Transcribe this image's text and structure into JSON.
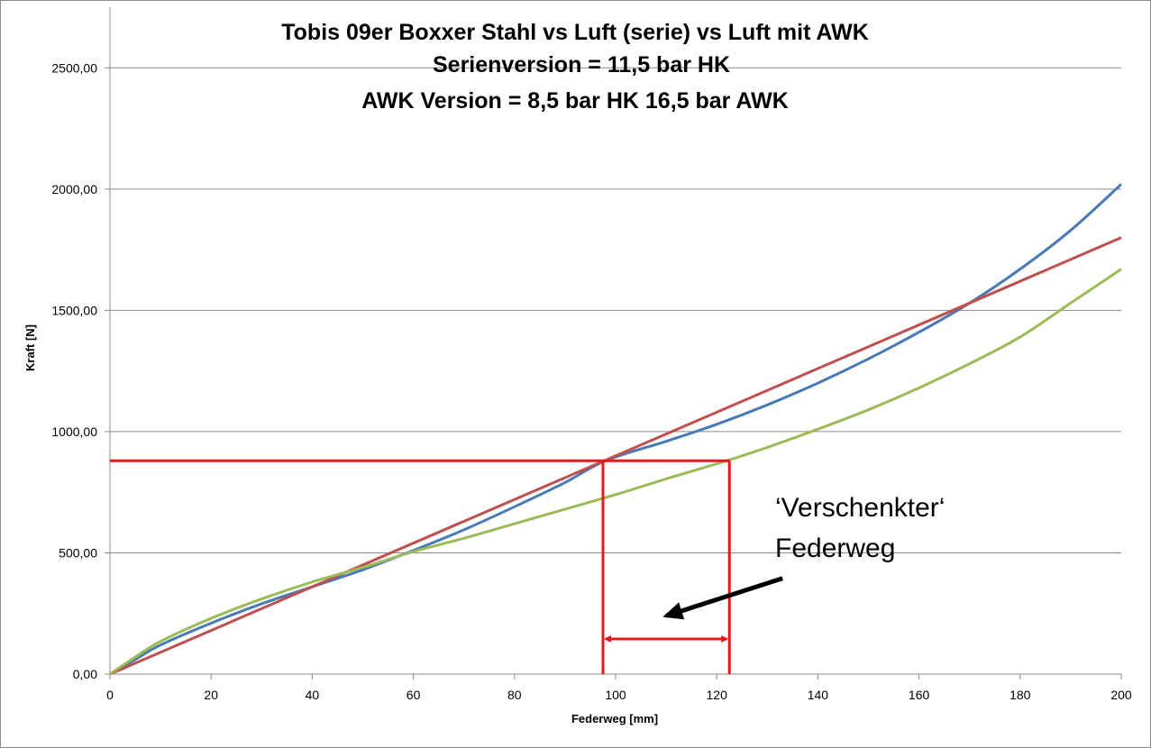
{
  "chart_data": {
    "type": "line",
    "title_lines": [
      "Tobis 09er Boxxer Stahl vs Luft (serie) vs Luft mit AWK",
      "Serienversion = 11,5 bar HK",
      "AWK Version = 8,5 bar HK 16,5 bar AWK"
    ],
    "xlabel": "Federweg [mm]",
    "ylabel": "Kraft [N]",
    "xlim": [
      0,
      200
    ],
    "ylim": [
      0,
      2750
    ],
    "x_ticks": [
      0,
      20,
      40,
      60,
      80,
      100,
      120,
      140,
      160,
      180,
      200
    ],
    "x_tick_labels": [
      "0",
      "20",
      "40",
      "60",
      "80",
      "100",
      "120",
      "140",
      "160",
      "180",
      "200"
    ],
    "y_ticks": [
      0,
      500,
      1000,
      1500,
      2000,
      2500
    ],
    "y_tick_labels": [
      "0,00",
      "500,00",
      "1000,00",
      "1500,00",
      "2000,00",
      "2500,00"
    ],
    "grid": {
      "horizontal": true,
      "vertical": false
    },
    "legend": "none",
    "series": [
      {
        "color": "#4a7ab5",
        "points": [
          [
            0,
            0
          ],
          [
            5,
            60
          ],
          [
            10,
            120
          ],
          [
            20,
            210
          ],
          [
            30,
            290
          ],
          [
            40,
            360
          ],
          [
            50,
            430
          ],
          [
            60,
            510
          ],
          [
            70,
            595
          ],
          [
            80,
            690
          ],
          [
            90,
            790
          ],
          [
            98,
            880
          ],
          [
            110,
            960
          ],
          [
            120,
            1030
          ],
          [
            130,
            1110
          ],
          [
            140,
            1200
          ],
          [
            150,
            1300
          ],
          [
            160,
            1410
          ],
          [
            170,
            1530
          ],
          [
            180,
            1670
          ],
          [
            190,
            1830
          ],
          [
            200,
            2020
          ]
        ]
      },
      {
        "color": "#c0504d",
        "points": [
          [
            0,
            0
          ],
          [
            200,
            1800
          ]
        ]
      },
      {
        "color": "#9bbb59",
        "points": [
          [
            0,
            0
          ],
          [
            5,
            70
          ],
          [
            10,
            135
          ],
          [
            20,
            230
          ],
          [
            30,
            310
          ],
          [
            40,
            380
          ],
          [
            50,
            440
          ],
          [
            60,
            505
          ],
          [
            70,
            560
          ],
          [
            80,
            620
          ],
          [
            90,
            680
          ],
          [
            100,
            740
          ],
          [
            110,
            805
          ],
          [
            122,
            880
          ],
          [
            130,
            935
          ],
          [
            140,
            1010
          ],
          [
            150,
            1090
          ],
          [
            160,
            1180
          ],
          [
            170,
            1280
          ],
          [
            180,
            1390
          ],
          [
            190,
            1530
          ],
          [
            200,
            1670
          ]
        ]
      }
    ],
    "overlay": {
      "color": "#e31a1c",
      "hline": {
        "y": 880,
        "x_from": 0,
        "x_to": 122.5
      },
      "vlines": [
        {
          "x": 97.5,
          "y_from": 0,
          "y_to": 880
        },
        {
          "x": 122.5,
          "y_from": 0,
          "y_to": 880
        }
      ],
      "double_arrow": {
        "y": 145,
        "x_from": 97.5,
        "x_to": 122.5
      }
    },
    "annotation": {
      "lines": [
        "‘Verschenkter‘",
        "Federweg"
      ],
      "arrow": {
        "from": [
          133,
          395
        ],
        "to": [
          110,
          240
        ]
      }
    }
  }
}
